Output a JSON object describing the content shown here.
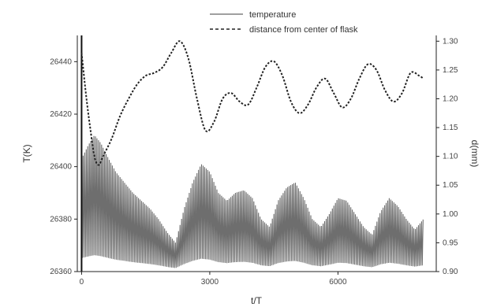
{
  "chart_data": {
    "type": "line",
    "x_label": "t/T",
    "y_label_left": "T(K)",
    "y_label_right": "d(mm)",
    "x_ticks": [
      "0",
      "3000",
      "6000"
    ],
    "x_tick_values": [
      0,
      3000,
      6000
    ],
    "xlim": [
      -100,
      8300
    ],
    "y_left_ticks": [
      "26440",
      "26420",
      "26400",
      "26380",
      "26360"
    ],
    "y_left_tick_values": [
      26440,
      26420,
      26400,
      26380,
      26360
    ],
    "ylim_left": [
      26360,
      26450
    ],
    "y_right_ticks": [
      "1.30",
      "1.25",
      "1.20",
      "1.15",
      "1.10",
      "1.05",
      "1.00",
      "0.95",
      "0.90"
    ],
    "y_right_tick_values": [
      1.3,
      1.25,
      1.2,
      1.15,
      1.1,
      1.05,
      1.0,
      0.95,
      0.9
    ],
    "ylim_right": [
      0.9,
      1.31
    ],
    "legend_position": "top-right",
    "series": [
      {
        "name": "temperature",
        "axis": "left",
        "style": "solid-oscillating",
        "envelope_x": [
          0,
          150,
          300,
          450,
          600,
          800,
          1000,
          1200,
          1400,
          1600,
          1800,
          2000,
          2200,
          2400,
          2600,
          2800,
          3000,
          3200,
          3400,
          3600,
          3800,
          4000,
          4200,
          4400,
          4600,
          4800,
          5000,
          5200,
          5400,
          5600,
          5800,
          6000,
          6200,
          6400,
          6600,
          6800,
          7000,
          7200,
          7400,
          7600,
          7800,
          8000
        ],
        "envelope_y": [
          26403,
          26408,
          26412,
          26409,
          26404,
          26398,
          26394,
          26390,
          26387,
          26384,
          26380,
          26375,
          26371,
          26384,
          26394,
          26401,
          26398,
          26390,
          26387,
          26390,
          26391,
          26388,
          26380,
          26377,
          26387,
          26392,
          26394,
          26388,
          26380,
          26377,
          26382,
          26388,
          26387,
          26382,
          26377,
          26374,
          26383,
          26388,
          26385,
          26380,
          26376,
          26380
        ],
        "floor_y": 26360
      },
      {
        "name": "distance from center of flask",
        "axis": "right",
        "style": "dashed",
        "x": [
          0,
          100,
          200,
          300,
          400,
          500,
          700,
          900,
          1100,
          1300,
          1500,
          1700,
          1900,
          2100,
          2300,
          2500,
          2700,
          2900,
          3100,
          3300,
          3500,
          3700,
          3900,
          4100,
          4300,
          4500,
          4700,
          4900,
          5100,
          5300,
          5500,
          5700,
          5900,
          6100,
          6300,
          6500,
          6700,
          6900,
          7100,
          7300,
          7500,
          7700,
          7900,
          8000
        ],
        "y": [
          1.28,
          1.21,
          1.15,
          1.1,
          1.085,
          1.1,
          1.13,
          1.17,
          1.2,
          1.225,
          1.24,
          1.245,
          1.255,
          1.28,
          1.3,
          1.27,
          1.2,
          1.145,
          1.16,
          1.2,
          1.21,
          1.195,
          1.19,
          1.22,
          1.255,
          1.265,
          1.24,
          1.195,
          1.175,
          1.19,
          1.22,
          1.235,
          1.21,
          1.185,
          1.2,
          1.235,
          1.26,
          1.25,
          1.215,
          1.195,
          1.21,
          1.245,
          1.24,
          1.235
        ]
      }
    ]
  },
  "colors": {
    "temperature": "#555555",
    "distance": "#222222",
    "axis": "#111111"
  }
}
